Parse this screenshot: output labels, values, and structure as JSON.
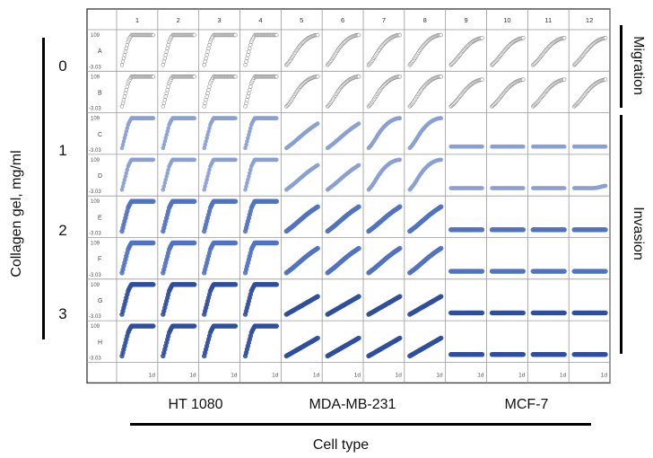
{
  "y_axis_title": "Collagen  gel, mg/ml",
  "x_axis_title": "Cell type",
  "row_groups": [
    {
      "label": "0",
      "rows": [
        "A",
        "B"
      ]
    },
    {
      "label": "1",
      "rows": [
        "C",
        "D"
      ]
    },
    {
      "label": "2",
      "rows": [
        "E",
        "F"
      ]
    },
    {
      "label": "3",
      "rows": [
        "G",
        "H"
      ]
    }
  ],
  "col_groups": [
    {
      "label": "HT 1080",
      "cols": [
        "1",
        "2",
        "3",
        "4"
      ]
    },
    {
      "label": "MDA-MB-231",
      "cols": [
        "5",
        "6",
        "7",
        "8"
      ]
    },
    {
      "label": "MCF-7",
      "cols": [
        "9",
        "10",
        "11",
        "12"
      ]
    }
  ],
  "right_labels": [
    "Migration",
    "Invasion"
  ],
  "colors": {
    "light": "#8c8c8c",
    "light_blue": "#8aa0d2",
    "mid_blue": "#5273c0",
    "dark_blue": "#2f4f9e"
  },
  "chart_data": {
    "type": "line",
    "title": "",
    "x_tick_label": "1d",
    "y_tick_max": "109",
    "y_tick_min": "-3.03",
    "ylim": [
      -3.03,
      109
    ],
    "rows": [
      "A",
      "B",
      "C",
      "D",
      "E",
      "F",
      "G",
      "H"
    ],
    "columns": [
      "1",
      "2",
      "3",
      "4",
      "5",
      "6",
      "7",
      "8",
      "9",
      "10",
      "11",
      "12"
    ],
    "x": [
      0.0,
      0.1,
      0.2,
      0.3,
      0.4,
      0.5,
      0.6,
      0.7,
      0.8,
      0.9,
      1.0
    ],
    "curve_types": {
      "ht1080": [
        0,
        40,
        80,
        100,
        100,
        100,
        100,
        100,
        100,
        100,
        100
      ],
      "mda_light": [
        0,
        12,
        28,
        45,
        60,
        72,
        82,
        90,
        95,
        99,
        100
      ],
      "mda_medium": [
        0,
        8,
        16,
        25,
        34,
        43,
        52,
        60,
        68,
        75,
        82
      ],
      "mda_low": [
        0,
        6,
        12,
        18,
        24,
        30,
        36,
        42,
        48,
        54,
        60
      ],
      "mcf7_migration": [
        0,
        10,
        22,
        35,
        48,
        60,
        70,
        78,
        84,
        88,
        90
      ],
      "mcf7_flat": [
        5,
        5,
        5,
        5,
        5,
        5,
        5,
        5,
        5,
        5,
        5
      ],
      "mcf7_flat_rise": [
        5,
        5,
        5,
        5,
        5,
        5,
        5,
        6,
        8,
        11,
        13
      ]
    },
    "wells": [
      [
        "ht1080",
        "ht1080",
        "ht1080",
        "ht1080",
        "mda_light",
        "mda_light",
        "mda_light",
        "mda_light",
        "mcf7_migration",
        "mcf7_migration",
        "mcf7_migration",
        "mcf7_migration"
      ],
      [
        "ht1080",
        "ht1080",
        "ht1080",
        "ht1080",
        "mda_light",
        "mda_light",
        "mda_light",
        "mda_light",
        "mcf7_migration",
        "mcf7_migration",
        "mcf7_migration",
        "mcf7_migration"
      ],
      [
        "ht1080",
        "ht1080",
        "ht1080",
        "ht1080",
        "mda_medium",
        "mda_medium",
        "mda_light",
        "mda_light",
        "mcf7_flat",
        "mcf7_flat",
        "mcf7_flat",
        "mcf7_flat"
      ],
      [
        "ht1080",
        "ht1080",
        "ht1080",
        "ht1080",
        "mda_medium",
        "mda_medium",
        "mda_light",
        "mda_light",
        "mcf7_flat",
        "mcf7_flat",
        "mcf7_flat",
        "mcf7_flat_rise"
      ],
      [
        "ht1080",
        "ht1080",
        "ht1080",
        "ht1080",
        "mda_medium",
        "mda_medium",
        "mda_medium",
        "mda_medium",
        "mcf7_flat",
        "mcf7_flat",
        "mcf7_flat",
        "mcf7_flat"
      ],
      [
        "ht1080",
        "ht1080",
        "ht1080",
        "ht1080",
        "mda_medium",
        "mda_medium",
        "mda_medium",
        "mda_medium",
        "mcf7_flat",
        "mcf7_flat",
        "mcf7_flat",
        "mcf7_flat"
      ],
      [
        "ht1080",
        "ht1080",
        "ht1080",
        "ht1080",
        "mda_low",
        "mda_low",
        "mda_low",
        "mda_low",
        "mcf7_flat",
        "mcf7_flat",
        "mcf7_flat",
        "mcf7_flat"
      ],
      [
        "ht1080",
        "ht1080",
        "ht1080",
        "ht1080",
        "mda_low",
        "mda_low",
        "mda_low",
        "mda_low",
        "mcf7_flat",
        "mcf7_flat",
        "mcf7_flat",
        "mcf7_flat"
      ]
    ],
    "row_color": [
      "light",
      "light",
      "light_blue",
      "light_blue",
      "mid_blue",
      "mid_blue",
      "dark_blue",
      "dark_blue"
    ]
  }
}
